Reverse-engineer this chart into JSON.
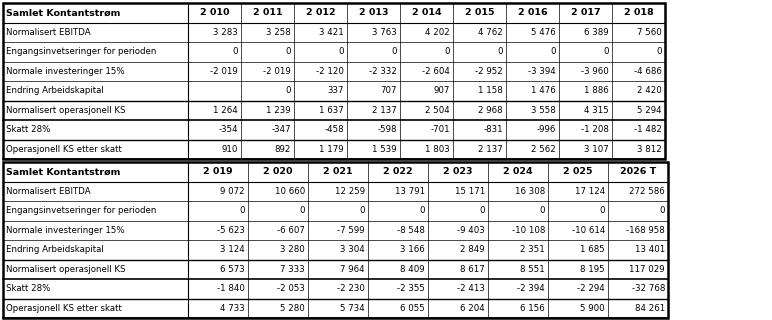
{
  "table1": {
    "header_col": "Samlet Kontantstrøm",
    "years": [
      "2 010",
      "2 011",
      "2 012",
      "2 013",
      "2 014",
      "2 015",
      "2 016",
      "2 017",
      "2 018"
    ],
    "rows": [
      {
        "label": "Normalisert EBITDA",
        "values": [
          "3 283",
          "3 258",
          "3 421",
          "3 763",
          "4 202",
          "4 762",
          "5 476",
          "6 389",
          "7 560"
        ],
        "bold_row": false
      },
      {
        "label": "Engangsinvetseringer for perioden",
        "values": [
          "0",
          "0",
          "0",
          "0",
          "0",
          "0",
          "0",
          "0",
          "0"
        ],
        "bold_row": false
      },
      {
        "label": "Normale investeringer 15%",
        "values": [
          "-2 019",
          "-2 019",
          "-2 120",
          "-2 332",
          "-2 604",
          "-2 952",
          "-3 394",
          "-3 960",
          "-4 686"
        ],
        "bold_row": false
      },
      {
        "label": "Endring Arbeidskapital",
        "values": [
          "",
          "0",
          "337",
          "707",
          "907",
          "1 158",
          "1 476",
          "1 886",
          "2 420"
        ],
        "bold_row": false
      },
      {
        "label": "Normalisert operasjonell KS",
        "values": [
          "1 264",
          "1 239",
          "1 637",
          "2 137",
          "2 504",
          "2 968",
          "3 558",
          "4 315",
          "5 294"
        ],
        "bold_row": true
      },
      {
        "label": "Skatt 28%",
        "values": [
          "-354",
          "-347",
          "-458",
          "-598",
          "-701",
          "-831",
          "-996",
          "-1 208",
          "-1 482"
        ],
        "bold_row": false
      },
      {
        "label": "Operasjonell KS etter skatt",
        "values": [
          "910",
          "892",
          "1 179",
          "1 539",
          "1 803",
          "2 137",
          "2 562",
          "3 107",
          "3 812"
        ],
        "bold_row": true
      }
    ]
  },
  "table2": {
    "header_col": "Samlet Kontantstrøm",
    "years": [
      "2 019",
      "2 020",
      "2 021",
      "2 022",
      "2 023",
      "2 024",
      "2 025",
      "2026 T"
    ],
    "rows": [
      {
        "label": "Normalisert EBITDA",
        "values": [
          "9 072",
          "10 660",
          "12 259",
          "13 791",
          "15 171",
          "16 308",
          "17 124",
          "272 586"
        ],
        "bold_row": false
      },
      {
        "label": "Engangsinvetseringer for perioden",
        "values": [
          "0",
          "0",
          "0",
          "0",
          "0",
          "0",
          "0",
          "0"
        ],
        "bold_row": false
      },
      {
        "label": "Normale investeringer 15%",
        "values": [
          "-5 623",
          "-6 607",
          "-7 599",
          "-8 548",
          "-9 403",
          "-10 108",
          "-10 614",
          "-168 958"
        ],
        "bold_row": false
      },
      {
        "label": "Endring Arbeidskapital",
        "values": [
          "3 124",
          "3 280",
          "3 304",
          "3 166",
          "2 849",
          "2 351",
          "1 685",
          "13 401"
        ],
        "bold_row": false
      },
      {
        "label": "Normalisert operasjonell KS",
        "values": [
          "6 573",
          "7 333",
          "7 964",
          "8 409",
          "8 617",
          "8 551",
          "8 195",
          "117 029"
        ],
        "bold_row": true
      },
      {
        "label": "Skatt 28%",
        "values": [
          "-1 840",
          "-2 053",
          "-2 230",
          "-2 355",
          "-2 413",
          "-2 394",
          "-2 294",
          "-32 768"
        ],
        "bold_row": false
      },
      {
        "label": "Operasjonell KS etter skatt",
        "values": [
          "4 733",
          "5 280",
          "5 734",
          "6 055",
          "6 204",
          "6 156",
          "5 900",
          "84 261"
        ],
        "bold_row": true
      }
    ]
  },
  "fig_w": 7.72,
  "fig_h": 3.2,
  "dpi": 100
}
